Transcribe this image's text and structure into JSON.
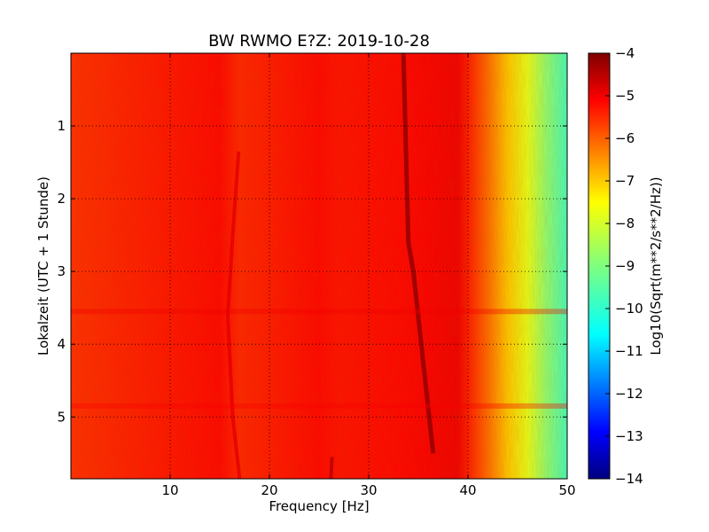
{
  "chart_data": {
    "type": "heatmap",
    "title": "BW RWMO E?Z: 2019-10-28",
    "xlabel": "Frequency [Hz]",
    "ylabel": "Lokalzeit (UTC + 1 Stunde)",
    "xlim": [
      0,
      50
    ],
    "ylim": [
      5.85,
      0.0
    ],
    "x_ticks": [
      10,
      20,
      30,
      40,
      50
    ],
    "y_ticks": [
      1,
      2,
      3,
      4,
      5
    ],
    "grid": true,
    "colormap": "jet",
    "colorbar": {
      "label": "Log10(Sqrt(m**2/s**2/Hz))",
      "range": [
        -14,
        -4
      ],
      "ticks": [
        -4,
        -5,
        -6,
        -7,
        -8,
        -9,
        -10,
        -11,
        -12,
        -13,
        -14
      ]
    },
    "background_level": -5.8,
    "frequency_profile": [
      {
        "x": 0,
        "y": -5.7
      },
      {
        "x": 15,
        "y": -5.3
      },
      {
        "x": 17,
        "y": -5.6
      },
      {
        "x": 25,
        "y": -5.3
      },
      {
        "x": 27,
        "y": -5.4
      },
      {
        "x": 33,
        "y": -5.3
      },
      {
        "x": 36,
        "y": -5.2
      },
      {
        "x": 39,
        "y": -5.1
      },
      {
        "x": 40,
        "y": -5.5
      },
      {
        "x": 42,
        "y": -6.3
      },
      {
        "x": 44,
        "y": -7.2
      },
      {
        "x": 46,
        "y": -8.0
      },
      {
        "x": 48,
        "y": -8.9
      },
      {
        "x": 50,
        "y": -9.6
      }
    ],
    "lines": [
      {
        "points": [
          [
            33.5,
            0.0
          ],
          [
            34.0,
            2.6
          ],
          [
            34.5,
            3.0
          ],
          [
            36.5,
            5.5
          ]
        ],
        "level": -4.2
      },
      {
        "points": [
          [
            16.9,
            1.35
          ],
          [
            16.3,
            2.5
          ],
          [
            15.8,
            3.6
          ],
          [
            16.3,
            5.0
          ],
          [
            17.0,
            5.85
          ]
        ],
        "level": -5.0
      },
      {
        "points": [
          [
            26.3,
            5.55
          ],
          [
            26.2,
            5.85
          ]
        ],
        "level": -4.6
      }
    ],
    "events": [
      {
        "t": 3.55,
        "level": -5.1
      },
      {
        "t": 4.85,
        "level": -5.2
      }
    ]
  }
}
